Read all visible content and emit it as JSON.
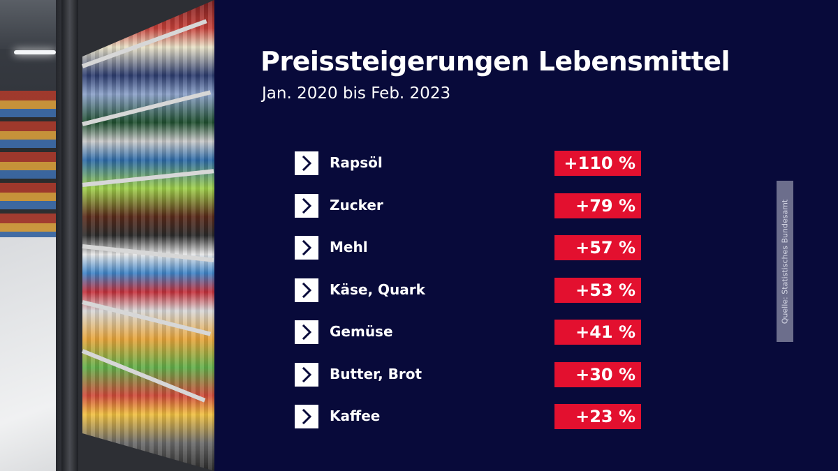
{
  "header": {
    "title": "Preissteigerungen Lebensmittel",
    "subtitle": "Jan. 2020 bis Feb. 2023"
  },
  "items": [
    {
      "label": "Rapsöl",
      "change": "+110 %"
    },
    {
      "label": "Zucker",
      "change": "+79 %"
    },
    {
      "label": "Mehl",
      "change": "+57 %"
    },
    {
      "label": "Käse, Quark",
      "change": "+53 %"
    },
    {
      "label": "Gemüse",
      "change": "+41 %"
    },
    {
      "label": "Butter, Brot",
      "change": "+30 %"
    },
    {
      "label": "Kaffee",
      "change": "+23 %"
    }
  ],
  "source": "Quelle: Statistisches Bundesamt",
  "colors": {
    "background": "#080a3a",
    "badge": "#e3102f",
    "text": "#ffffff",
    "source_box": "#6c6e8c"
  },
  "icons": {
    "bullet": "chevron-right-icon",
    "photo": "supermarket-aisle-photo"
  }
}
